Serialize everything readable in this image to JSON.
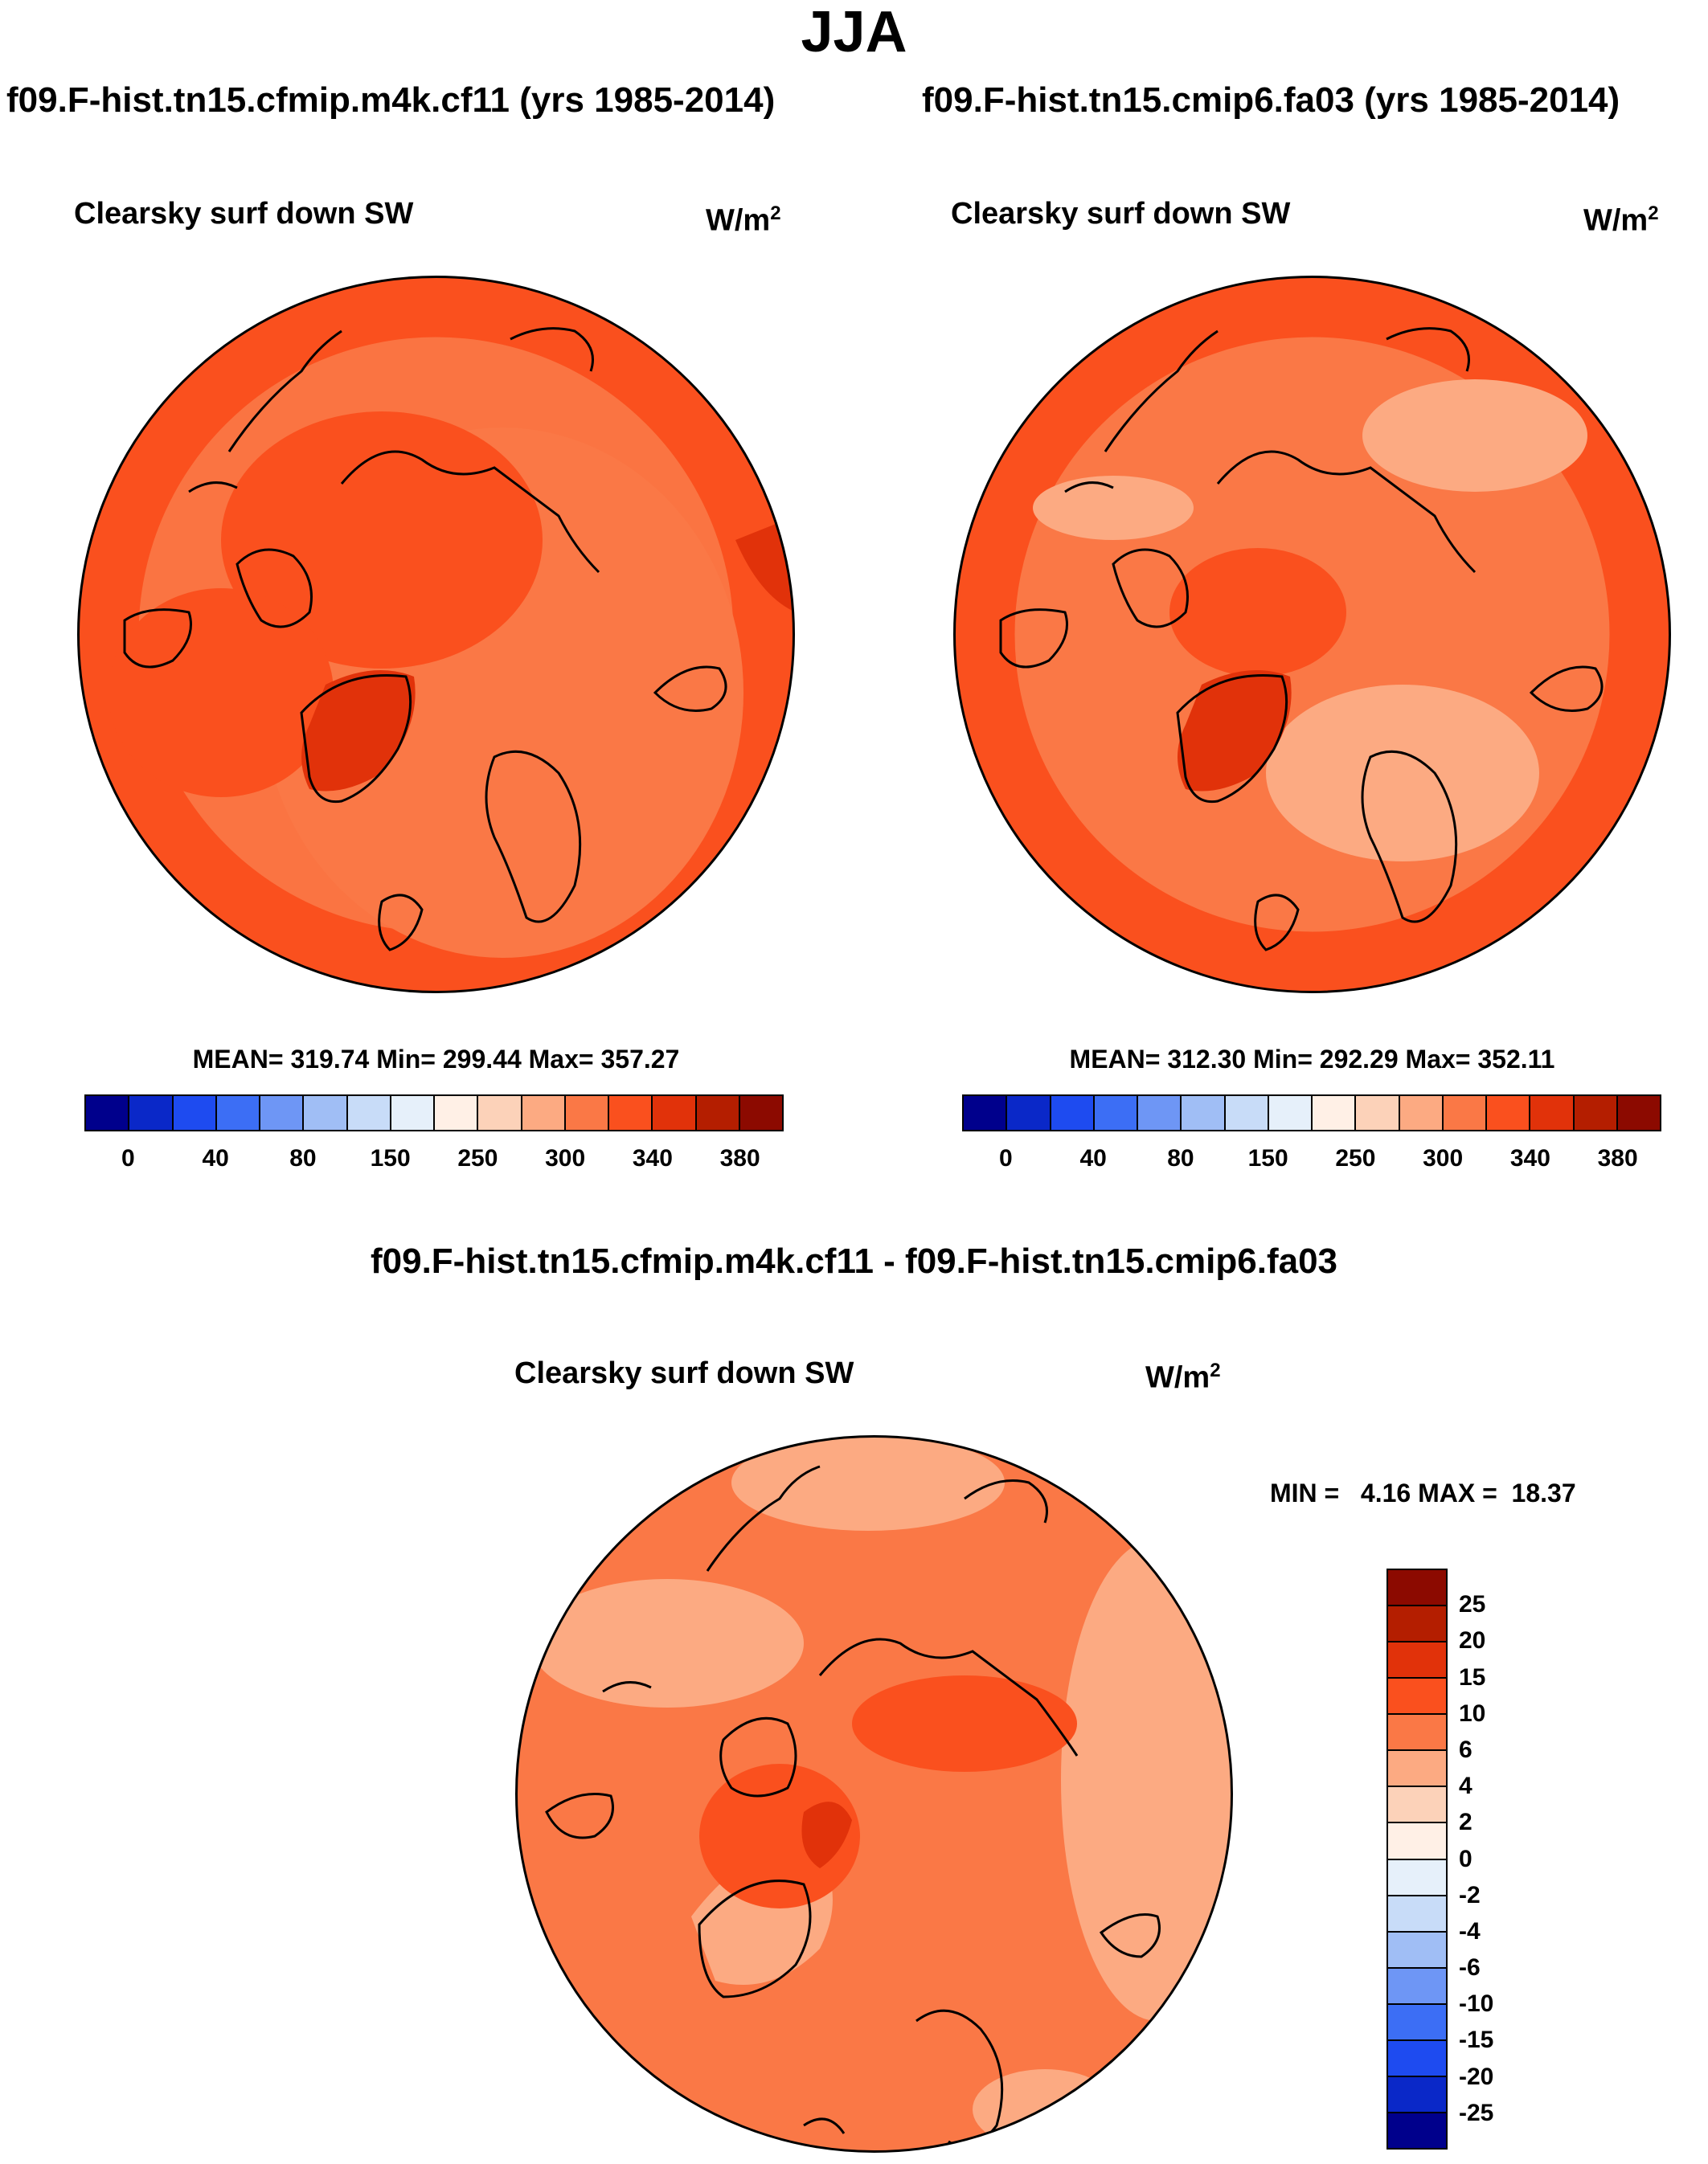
{
  "season": "JJA",
  "panels": [
    {
      "run_title": "f09.F-hist.tn15.cfmip.m4k.cf11 (yrs 1985-2014)",
      "variable": "Clearsky surf down SW",
      "unit": "W/m",
      "unit_sup": "2",
      "stats": "MEAN= 319.74  Min= 299.44  Max= 357.27"
    },
    {
      "run_title": "f09.F-hist.tn15.cmip6.fa03 (yrs 1985-2014)",
      "variable": "Clearsky surf down SW",
      "unit": "W/m",
      "unit_sup": "2",
      "stats": "MEAN= 312.30  Min= 292.29  Max= 352.11"
    }
  ],
  "abs_colorbar": {
    "colors": [
      "#00008c",
      "#0a28c8",
      "#1e4bf0",
      "#3c6ef5",
      "#6e96f5",
      "#a0bef5",
      "#c8dcf8",
      "#e6f0fa",
      "#fff0e6",
      "#fcd2b9",
      "#fcaa82",
      "#fa7846",
      "#fa501e",
      "#e1320a",
      "#b41e00",
      "#8c0a00"
    ],
    "ticks": [
      "0",
      "40",
      "80",
      "150",
      "250",
      "300",
      "340",
      "380"
    ]
  },
  "diff": {
    "title": "f09.F-hist.tn15.cfmip.m4k.cf11 - f09.F-hist.tn15.cmip6.fa03",
    "variable": "Clearsky surf down SW",
    "unit": "W/m",
    "unit_sup": "2",
    "minmax": "MIN =   4.16 MAX =  18.37",
    "colorbar": {
      "colors": [
        "#8c0a00",
        "#b41e00",
        "#e1320a",
        "#fa501e",
        "#fa7846",
        "#fcaa82",
        "#fcd2b9",
        "#fff0e6",
        "#e6f0fa",
        "#c8dcf8",
        "#a0bef5",
        "#6e96f5",
        "#3c6ef5",
        "#1e4bf0",
        "#0a28c8",
        "#00008c"
      ],
      "ticks": [
        "25",
        "20",
        "15",
        "10",
        "6",
        "4",
        "2",
        "0",
        "-2",
        "-4",
        "-6",
        "-10",
        "-15",
        "-20",
        "-25"
      ]
    }
  },
  "map_colors": {
    "c300": "#fa7846",
    "c340": "#fa501e",
    "c360": "#e1320a",
    "c250": "#fcaa82",
    "c380": "#b41e00",
    "d10": "#fa7846",
    "d6": "#fcaa82",
    "d15": "#fa501e",
    "d20": "#e1320a"
  }
}
